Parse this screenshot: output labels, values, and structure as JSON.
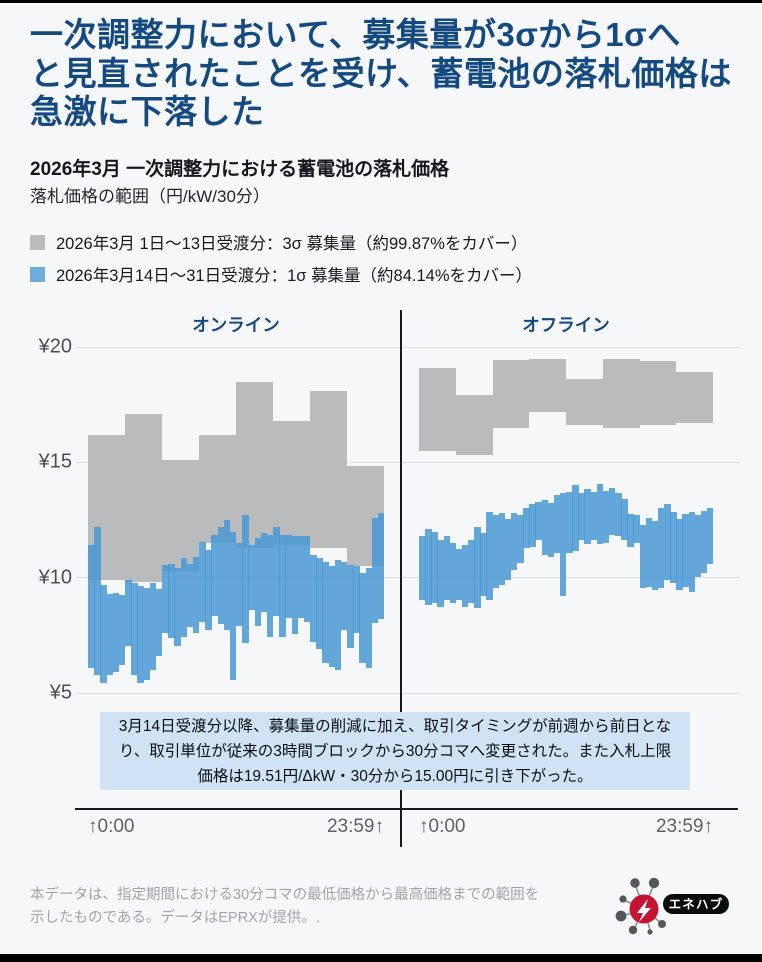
{
  "page": {
    "title_lines": [
      "一次調整力において、募集量が3σから1σへ",
      "と見直されたことを受け、蓄電池の落札価格は",
      "急激に下落した"
    ],
    "subtitle": "2026年3月 一次調整力における蓄電池の落札価格",
    "unit_label": "落札価格の範囲（円/kW/30分）",
    "footer": "本データは、指定期間における30分コマの最低価格から最高価格までの範囲を示したものである。データはEPRXが提供。.",
    "logo_text": "エネハブ"
  },
  "legend": [
    {
      "label": "2026年3月 1日〜13日受渡分：3σ 募集量（約99.87%をカバー）",
      "color": "#b9bbbd"
    },
    {
      "label": "2026年3月14日〜31日受渡分：1σ 募集量（約84.14%をカバー）",
      "color": "#6cadde"
    }
  ],
  "note": "3月14日受渡分以降、募集量の削減に加え、取引タイミングが前週から前日となり、取引単位が従来の3時間ブロックから30分コマへ変更された。また入札上限価格は19.51円/ΔkW・30分から15.00円に引き下がった。",
  "colors": {
    "title_blue": "#154a80",
    "bar_gray": "#b9bbbd",
    "bar_blue_rgba": "rgba(73,152,212,0.85)",
    "note_bg": "#cfe3f5",
    "axis_black": "#17191c",
    "logo_red": "#c41431"
  },
  "chart_data": {
    "type": "bar",
    "subtype": "range-bars (min-max of winning bid prices)",
    "title": "2026年3月 一次調整力における蓄電池の落札価格",
    "ylabel": "落札価格の範囲（円/kW/30分）",
    "ylim": [
      4.7,
      20.6
    ],
    "grid": true,
    "y_ticks": [
      "¥20",
      "¥15",
      "¥10",
      "¥5"
    ],
    "y_tick_values": [
      20,
      15,
      10,
      5
    ],
    "panels": [
      {
        "title": "オンライン",
        "x_start_label": "↑0:00",
        "x_end_label": "23:59↑",
        "gray_blocks_3h": [
          [
            9.9,
            16.2
          ],
          [
            9.8,
            17.1
          ],
          [
            10.3,
            15.1
          ],
          [
            11.5,
            16.2
          ],
          [
            11.3,
            18.5
          ],
          [
            11.4,
            16.8
          ],
          [
            11.3,
            18.1
          ],
          [
            10.5,
            14.85
          ]
        ],
        "blue_bars_30min": [
          [
            6.1,
            11.4
          ],
          [
            5.8,
            12.2
          ],
          [
            5.45,
            9.7
          ],
          [
            5.8,
            9.3
          ],
          [
            5.9,
            9.35
          ],
          [
            6.2,
            9.25
          ],
          [
            7.05,
            9.9
          ],
          [
            5.8,
            9.75
          ],
          [
            5.45,
            9.65
          ],
          [
            5.55,
            9.55
          ],
          [
            6.0,
            9.75
          ],
          [
            6.6,
            9.5
          ],
          [
            7.6,
            10.55
          ],
          [
            7.4,
            10.6
          ],
          [
            7.05,
            10.4
          ],
          [
            7.45,
            10.85
          ],
          [
            7.85,
            10.6
          ],
          [
            7.6,
            10.9
          ],
          [
            8.1,
            11.55
          ],
          [
            7.75,
            11.2
          ],
          [
            8.35,
            11.85
          ],
          [
            8.0,
            12.2
          ],
          [
            7.75,
            12.5
          ],
          [
            5.55,
            12.0
          ],
          [
            7.9,
            11.5
          ],
          [
            7.15,
            12.7
          ],
          [
            8.6,
            11.4
          ],
          [
            7.9,
            11.7
          ],
          [
            8.5,
            11.95
          ],
          [
            7.45,
            11.85
          ],
          [
            8.35,
            12.2
          ],
          [
            7.45,
            11.85
          ],
          [
            8.25,
            11.85
          ],
          [
            7.55,
            11.8
          ],
          [
            8.25,
            11.8
          ],
          [
            8.1,
            11.8
          ],
          [
            7.2,
            11.0
          ],
          [
            6.9,
            10.85
          ],
          [
            6.3,
            10.7
          ],
          [
            6.15,
            10.5
          ],
          [
            6.0,
            10.75
          ],
          [
            7.75,
            10.7
          ],
          [
            6.95,
            10.55
          ],
          [
            7.6,
            10.5
          ],
          [
            6.3,
            10.2
          ],
          [
            6.1,
            10.4
          ],
          [
            8.05,
            12.6
          ],
          [
            8.2,
            12.8
          ]
        ]
      },
      {
        "title": "オフライン",
        "x_start_label": "↑0:00",
        "x_end_label": "23:59↑",
        "gray_blocks_3h": [
          [
            15.5,
            19.1
          ],
          [
            15.3,
            17.9
          ],
          [
            16.5,
            19.45
          ],
          [
            17.2,
            19.5
          ],
          [
            16.6,
            18.6
          ],
          [
            16.5,
            19.5
          ],
          [
            16.6,
            19.4
          ],
          [
            16.7,
            18.9
          ]
        ],
        "blue_bars_30min": [
          [
            9.05,
            11.8
          ],
          [
            8.8,
            12.1
          ],
          [
            8.9,
            12.0
          ],
          [
            8.75,
            11.65
          ],
          [
            9.05,
            11.8
          ],
          [
            8.9,
            11.5
          ],
          [
            9.05,
            11.25
          ],
          [
            8.75,
            11.4
          ],
          [
            8.9,
            11.65
          ],
          [
            8.7,
            12.2
          ],
          [
            9.2,
            11.95
          ],
          [
            9.05,
            12.85
          ],
          [
            9.55,
            12.7
          ],
          [
            9.7,
            12.8
          ],
          [
            9.9,
            12.55
          ],
          [
            10.35,
            12.8
          ],
          [
            10.65,
            12.7
          ],
          [
            11.3,
            13.0
          ],
          [
            11.35,
            13.2
          ],
          [
            11.65,
            13.3
          ],
          [
            11.0,
            13.35
          ],
          [
            10.9,
            13.25
          ],
          [
            11.05,
            13.6
          ],
          [
            9.2,
            13.65
          ],
          [
            11.05,
            13.7
          ],
          [
            11.15,
            14.0
          ],
          [
            11.65,
            13.65
          ],
          [
            11.45,
            13.85
          ],
          [
            11.65,
            13.7
          ],
          [
            11.45,
            14.05
          ],
          [
            11.5,
            13.75
          ],
          [
            11.85,
            13.9
          ],
          [
            11.8,
            13.65
          ],
          [
            11.65,
            13.4
          ],
          [
            11.35,
            12.75
          ],
          [
            11.5,
            12.7
          ],
          [
            9.55,
            12.3
          ],
          [
            9.6,
            12.6
          ],
          [
            9.45,
            12.45
          ],
          [
            9.55,
            13.0
          ],
          [
            9.9,
            13.2
          ],
          [
            9.75,
            12.85
          ],
          [
            9.45,
            12.55
          ],
          [
            9.6,
            12.75
          ],
          [
            9.4,
            12.85
          ],
          [
            10.05,
            12.7
          ],
          [
            10.2,
            12.9
          ],
          [
            10.6,
            13.0
          ]
        ]
      }
    ]
  }
}
